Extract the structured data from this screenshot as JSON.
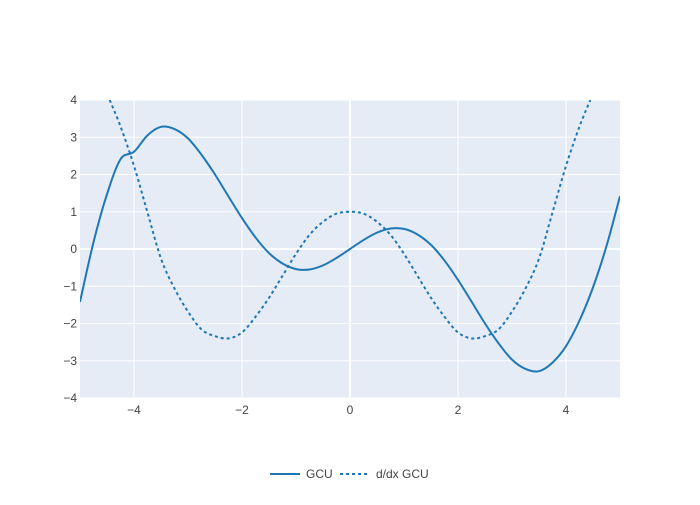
{
  "chart_data": {
    "type": "line",
    "title": "",
    "xlabel": "",
    "ylabel": "",
    "xlim": [
      -5,
      5
    ],
    "ylim": [
      -4,
      4
    ],
    "x_ticks": [
      -4,
      -2,
      0,
      2,
      4
    ],
    "x_tick_labels": [
      "−4",
      "−2",
      "0",
      "2",
      "4"
    ],
    "y_ticks": [
      -4,
      -3,
      -2,
      -1,
      0,
      1,
      2,
      3,
      4
    ],
    "y_tick_labels": [
      "−4",
      "−3",
      "−2",
      "−1",
      "0",
      "1",
      "2",
      "3",
      "4"
    ],
    "grid": true,
    "legend_position": "bottom-center",
    "colors": {
      "plot_background": "#e5ecf6",
      "grid": "#ffffff",
      "series": "#1f77b4"
    },
    "series": [
      {
        "name": "GCU",
        "style": "solid",
        "x": [
          -5,
          -4.75,
          -4.5,
          -4.25,
          -4,
          -3.75,
          -3.5,
          -3.25,
          -3,
          -2.75,
          -2.5,
          -2.25,
          -2,
          -1.75,
          -1.5,
          -1.25,
          -1,
          -0.75,
          -0.5,
          -0.25,
          0,
          0.25,
          0.5,
          0.75,
          1,
          1.25,
          1.5,
          1.75,
          2,
          2.25,
          2.5,
          2.75,
          3,
          3.25,
          3.5,
          3.75,
          4,
          4.25,
          4.5,
          4.75,
          5
        ],
        "y": [
          -1.42,
          0.18,
          1.47,
          2.41,
          2.61,
          3.05,
          3.28,
          3.22,
          2.97,
          2.53,
          2.0,
          1.41,
          0.83,
          0.31,
          -0.11,
          -0.39,
          -0.54,
          -0.55,
          -0.44,
          -0.24,
          0.0,
          0.24,
          0.44,
          0.55,
          0.54,
          0.39,
          0.11,
          -0.31,
          -0.83,
          -1.41,
          -2.0,
          -2.53,
          -2.97,
          -3.22,
          -3.28,
          -3.05,
          -2.61,
          -1.92,
          -1.03,
          0.08,
          1.42
        ]
      },
      {
        "name": "d/dx GCU",
        "style": "dotted",
        "x": [
          -4.45,
          -4.25,
          -4,
          -3.75,
          -3.5,
          -3.25,
          -3,
          -2.75,
          -2.5,
          -2.25,
          -2,
          -1.75,
          -1.5,
          -1.25,
          -1,
          -0.75,
          -0.5,
          -0.25,
          0,
          0.25,
          0.5,
          0.75,
          1,
          1.25,
          1.5,
          1.75,
          2,
          2.25,
          2.5,
          2.75,
          3,
          3.25,
          3.5,
          3.75,
          4,
          4.25,
          4.45
        ],
        "y": [
          4.0,
          3.29,
          2.23,
          0.98,
          -0.26,
          -1.06,
          -1.68,
          -2.16,
          -2.34,
          -2.4,
          -2.24,
          -1.82,
          -1.31,
          -0.72,
          -0.13,
          0.38,
          0.73,
          0.95,
          1.0,
          0.95,
          0.73,
          0.38,
          -0.13,
          -0.72,
          -1.31,
          -1.82,
          -2.24,
          -2.4,
          -2.34,
          -2.16,
          -1.68,
          -1.06,
          -0.26,
          0.98,
          2.23,
          3.29,
          4.0
        ]
      }
    ]
  }
}
